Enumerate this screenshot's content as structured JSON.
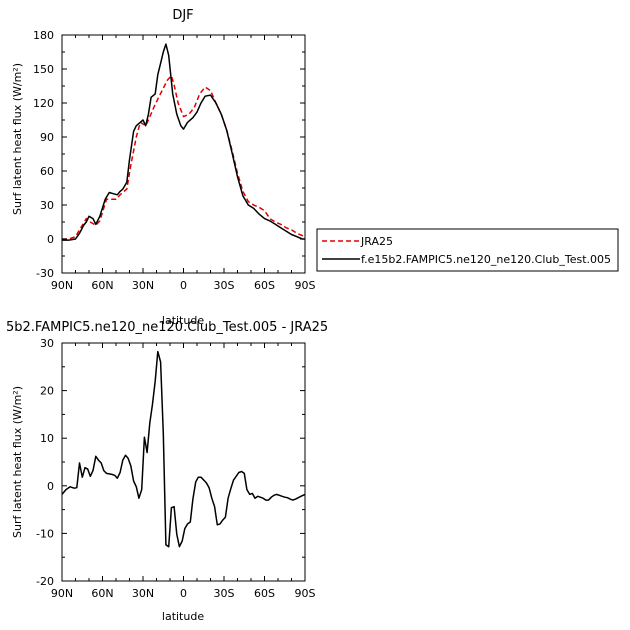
{
  "chart_data": [
    {
      "type": "line",
      "title": "DJF",
      "xlabel": "latitude",
      "ylabel": "Surf latent heat flux (W/m²)",
      "xlim": [
        90,
        -90
      ],
      "ylim": [
        -30,
        180
      ],
      "x_tick_values": [
        90,
        60,
        30,
        0,
        -30,
        -60,
        -90
      ],
      "x_tick_labels": [
        "90N",
        "60N",
        "30N",
        "0",
        "30S",
        "60S",
        "90S"
      ],
      "y_ticks": [
        -30,
        0,
        30,
        60,
        90,
        120,
        150,
        180
      ],
      "legend_position": "right",
      "series": [
        {
          "name": "JRA25",
          "color": "#e00000",
          "dash": "dashed",
          "x": [
            90,
            85,
            80,
            77,
            72,
            69,
            65,
            62,
            57,
            54,
            50,
            47,
            42,
            39,
            35,
            32,
            28,
            26,
            22,
            18,
            15,
            12,
            9,
            7,
            4,
            0,
            -4,
            -8,
            -12,
            -16,
            -20,
            -24,
            -28,
            -32,
            -36,
            -40,
            -44,
            -48,
            -52,
            -56,
            -60,
            -64,
            -68,
            -72,
            -76,
            -80,
            -84,
            -88,
            -90
          ],
          "y": [
            0,
            0,
            2,
            8,
            18,
            15,
            12,
            16,
            35,
            35,
            35,
            39,
            44,
            65,
            90,
            103,
            100,
            105,
            116,
            126,
            133,
            140,
            144,
            136,
            120,
            108,
            110,
            116,
            128,
            134,
            131,
            120,
            110,
            96,
            78,
            58,
            42,
            33,
            30,
            28,
            25,
            18,
            15,
            13,
            10,
            8,
            5,
            3,
            1
          ]
        },
        {
          "name": "f.e15b2.FAMPIC5.ne120_ne120.Club_Test.005",
          "color": "#000000",
          "dash": "solid",
          "x": [
            90,
            85,
            80,
            77,
            74,
            72,
            70,
            67,
            65,
            62,
            58,
            55,
            52,
            49,
            47,
            45,
            42,
            40,
            37,
            35,
            32,
            30,
            28,
            26,
            24,
            21,
            19,
            17,
            15,
            13,
            11,
            8,
            5,
            2,
            0,
            -3,
            -7,
            -10,
            -13,
            -16,
            -20,
            -24,
            -28,
            -32,
            -36,
            -40,
            -44,
            -48,
            -52,
            -56,
            -60,
            -64,
            -68,
            -72,
            -76,
            -80,
            -84,
            -88,
            -90
          ],
          "y": [
            -1,
            -1,
            0,
            5,
            12,
            15,
            20,
            18,
            13,
            20,
            35,
            41,
            40,
            39,
            42,
            44,
            50,
            70,
            95,
            100,
            103,
            105,
            100,
            110,
            125,
            128,
            145,
            155,
            165,
            172,
            162,
            128,
            110,
            100,
            97,
            103,
            107,
            112,
            120,
            126,
            127,
            120,
            110,
            96,
            76,
            55,
            38,
            30,
            27,
            22,
            18,
            16,
            13,
            10,
            7,
            4,
            2,
            0,
            0
          ]
        }
      ]
    },
    {
      "type": "line",
      "title": "5b2.FAMPIC5.ne120_ne120.Club_Test.005 - JRA25",
      "xlabel": "latitude",
      "ylabel": "Surf latent heat flux (W/m²)",
      "xlim": [
        90,
        -90
      ],
      "ylim": [
        -20,
        30
      ],
      "x_tick_values": [
        90,
        60,
        30,
        0,
        -30,
        -60,
        -90
      ],
      "x_tick_labels": [
        "90N",
        "60N",
        "30N",
        "0",
        "30S",
        "60S",
        "90S"
      ],
      "y_ticks": [
        -20,
        -10,
        0,
        10,
        20,
        30
      ],
      "series": [
        {
          "color": "#000000",
          "dash": "solid",
          "x": [
            90,
            87,
            84,
            81,
            79,
            77,
            75,
            73,
            71,
            69,
            67,
            65,
            63,
            61,
            59,
            57,
            55,
            53,
            51,
            49,
            47,
            45,
            43,
            41,
            39,
            37,
            35,
            33,
            31,
            29,
            27,
            25,
            23,
            21,
            19,
            17,
            15,
            13,
            11,
            9,
            7,
            5,
            3,
            1,
            -1,
            -3,
            -5,
            -7,
            -9,
            -11,
            -13,
            -15,
            -17,
            -19,
            -21,
            -23,
            -25,
            -27,
            -29,
            -31,
            -33,
            -35,
            -37,
            -39,
            -41,
            -43,
            -45,
            -47,
            -49,
            -51,
            -53,
            -55,
            -57,
            -59,
            -61,
            -63,
            -65,
            -67,
            -69,
            -71,
            -73,
            -75,
            -77,
            -79,
            -81,
            -83,
            -85,
            -87,
            -90
          ],
          "y": [
            -1.8,
            -0.8,
            -0.2,
            -0.5,
            -0.4,
            4.8,
            1.8,
            3.8,
            3.5,
            2.0,
            3.2,
            6.2,
            5.4,
            4.8,
            3.2,
            2.6,
            2.5,
            2.4,
            2.2,
            1.6,
            2.8,
            5.4,
            6.4,
            5.8,
            4.2,
            1.0,
            -0.2,
            -2.6,
            -0.8,
            10.2,
            7.0,
            13.2,
            17.0,
            22.0,
            28.2,
            26.0,
            11.0,
            -12.4,
            -12.8,
            -4.6,
            -4.4,
            -10.2,
            -12.8,
            -11.6,
            -9.0,
            -8.0,
            -7.6,
            -2.8,
            0.8,
            1.8,
            1.8,
            1.2,
            0.6,
            -0.4,
            -2.6,
            -4.4,
            -8.2,
            -8.0,
            -7.2,
            -6.6,
            -2.6,
            -0.6,
            1.2,
            2.0,
            2.8,
            3.0,
            2.6,
            -0.8,
            -1.8,
            -1.6,
            -2.6,
            -2.2,
            -2.4,
            -2.6,
            -3.0,
            -3.0,
            -2.4,
            -2.0,
            -1.8,
            -2.0,
            -2.2,
            -2.4,
            -2.5,
            -2.8,
            -3.0,
            -2.8,
            -2.5,
            -2.2,
            -1.8
          ]
        }
      ]
    }
  ]
}
